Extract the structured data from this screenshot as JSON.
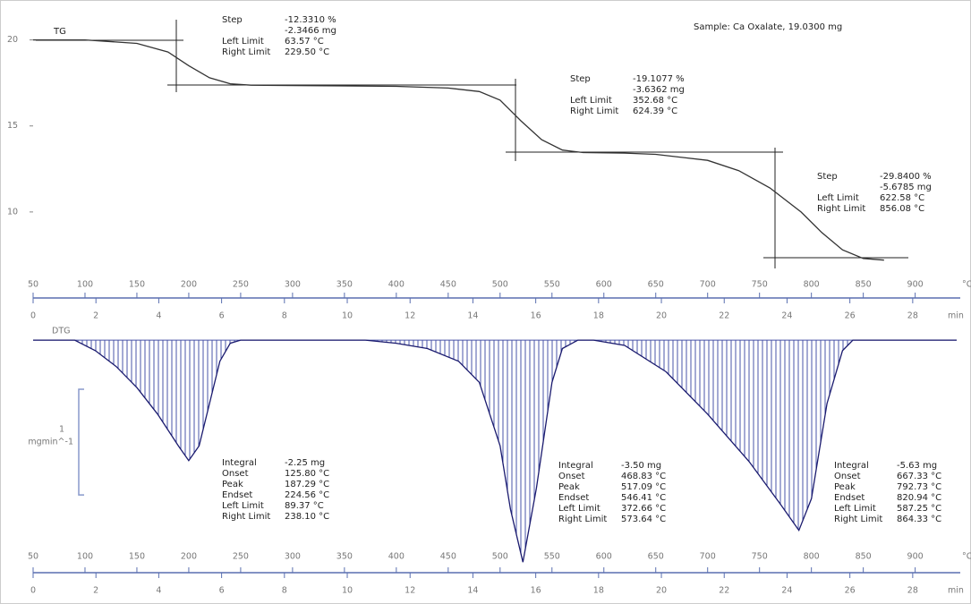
{
  "chart_data": [
    {
      "type": "line",
      "label": "TG",
      "sample": "Sample: Ca Oxalate, 19.0300 mg",
      "color": "#333333",
      "x": [
        50,
        100,
        150,
        180,
        200,
        220,
        240,
        260,
        300,
        400,
        450,
        480,
        500,
        520,
        540,
        560,
        580,
        620,
        650,
        700,
        730,
        760,
        790,
        810,
        830,
        850,
        870
      ],
      "values": [
        20,
        20,
        19.8,
        19.3,
        18.5,
        17.8,
        17.45,
        17.37,
        17.35,
        17.3,
        17.2,
        17.0,
        16.5,
        15.3,
        14.2,
        13.6,
        13.45,
        13.42,
        13.35,
        13.0,
        12.4,
        11.4,
        10.0,
        8.8,
        7.8,
        7.3,
        7.2
      ],
      "xlim": [
        50,
        940
      ],
      "xticks": [
        50,
        100,
        150,
        200,
        250,
        300,
        350,
        400,
        450,
        500,
        550,
        600,
        650,
        700,
        750,
        800,
        850,
        900
      ],
      "x_unit": "°C",
      "x2lim": [
        0,
        29.4
      ],
      "x2ticks": [
        0,
        2,
        4,
        6,
        8,
        10,
        12,
        14,
        16,
        18,
        20,
        22,
        24,
        26,
        28
      ],
      "x2_unit": "min",
      "ylim": [
        5,
        21.8
      ],
      "yticks": [
        20,
        15,
        10
      ],
      "annotations": [
        {
          "lines": [
            [
              "Step",
              "-12.3310 %"
            ],
            [
              "-2.3466 mg"
            ],
            [
              "Left Limit",
              "63.57 °C"
            ],
            [
              "Right Limit",
              "229.50 °C"
            ]
          ]
        },
        {
          "lines": [
            [
              "Step",
              "-19.1077 %"
            ],
            [
              "-3.6362 mg"
            ],
            [
              "Left Limit",
              "352.68 °C"
            ],
            [
              "Right Limit",
              "624.39 °C"
            ]
          ]
        },
        {
          "lines": [
            [
              "Step",
              "-29.8400 %"
            ],
            [
              "-5.6785 mg"
            ],
            [
              "Left Limit",
              "622.58 °C"
            ],
            [
              "Right Limit",
              "856.08 °C"
            ]
          ]
        }
      ]
    },
    {
      "type": "area",
      "label": "DTG",
      "color": "#1a1a6e",
      "fill": "#4a55a8",
      "x": [
        50,
        90,
        110,
        130,
        150,
        170,
        190,
        200,
        210,
        220,
        230,
        240,
        250,
        370,
        400,
        430,
        460,
        480,
        500,
        510,
        522,
        535,
        550,
        560,
        575,
        590,
        620,
        660,
        700,
        740,
        770,
        788,
        800,
        815,
        830,
        840,
        940
      ],
      "values": [
        0,
        0,
        -0.1,
        -0.25,
        -0.45,
        -0.7,
        -1.0,
        -1.14,
        -1.0,
        -0.6,
        -0.2,
        -0.03,
        0,
        0,
        -0.03,
        -0.08,
        -0.2,
        -0.4,
        -1.0,
        -1.6,
        -2.1,
        -1.4,
        -0.4,
        -0.08,
        0,
        0,
        -0.05,
        -0.3,
        -0.7,
        -1.15,
        -1.55,
        -1.8,
        -1.5,
        -0.6,
        -0.1,
        0,
        0
      ],
      "xlim": [
        50,
        940
      ],
      "xticks": [
        50,
        100,
        150,
        200,
        250,
        300,
        350,
        400,
        450,
        500,
        550,
        600,
        650,
        700,
        750,
        800,
        850,
        900
      ],
      "x_unit": "°C",
      "x2lim": [
        0,
        29.4
      ],
      "x2ticks": [
        0,
        2,
        4,
        6,
        8,
        10,
        12,
        14,
        16,
        18,
        20,
        22,
        24,
        26,
        28
      ],
      "x2_unit": "min",
      "ylim": [
        -2.2,
        0.17
      ],
      "scale_bar": 1,
      "scale_unit": "mgmin^-1",
      "annotations": [
        {
          "lines": [
            [
              "Integral",
              "-2.25 mg"
            ],
            [
              "Onset",
              "125.80 °C"
            ],
            [
              "Peak",
              "187.29 °C"
            ],
            [
              "Endset",
              "224.56 °C"
            ],
            [
              "Left Limit",
              "89.37 °C"
            ],
            [
              "Right Limit",
              "238.10 °C"
            ]
          ]
        },
        {
          "lines": [
            [
              "Integral",
              "-3.50 mg"
            ],
            [
              "Onset",
              "468.83 °C"
            ],
            [
              "Peak",
              "517.09 °C"
            ],
            [
              "Endset",
              "546.41 °C"
            ],
            [
              "Left Limit",
              "372.66 °C"
            ],
            [
              "Right Limit",
              "573.64 °C"
            ]
          ]
        },
        {
          "lines": [
            [
              "Integral",
              "-5.63 mg"
            ],
            [
              "Onset",
              "667.33 °C"
            ],
            [
              "Peak",
              "792.73 °C"
            ],
            [
              "Endset",
              "820.94 °C"
            ],
            [
              "Left Limit",
              "587.25 °C"
            ],
            [
              "Right Limit",
              "864.33 °C"
            ]
          ]
        }
      ]
    }
  ]
}
